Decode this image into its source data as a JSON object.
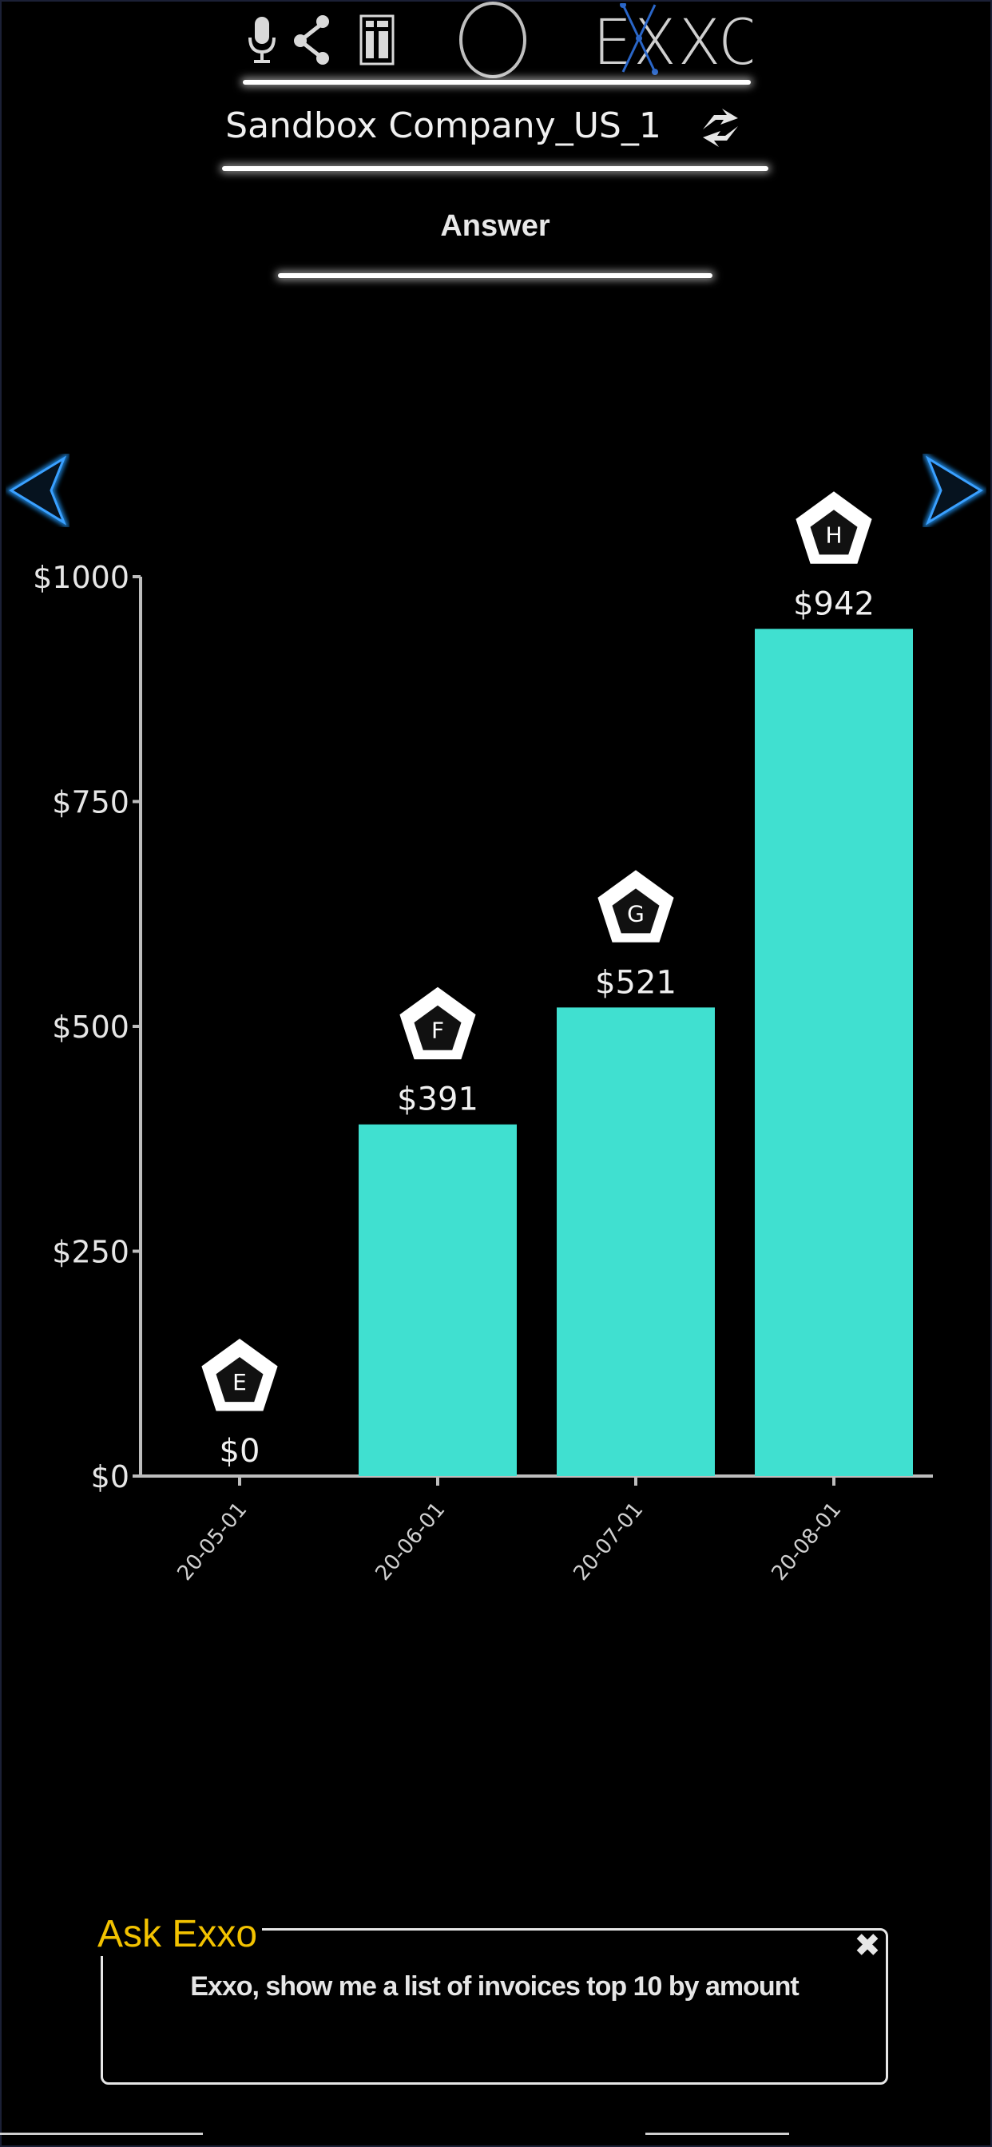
{
  "header": {
    "logo_text": "EXXO",
    "company_name": "Sandbox Company_US_1",
    "section_label": "Answer"
  },
  "icons": {
    "mic": "mic-icon",
    "share": "share-icon",
    "document": "document-icon",
    "home": "circle-icon",
    "refresh": "refresh-icon",
    "prev": "chevron-left-icon",
    "next": "chevron-right-icon",
    "close": "close-icon"
  },
  "colors": {
    "bar": "#40e0d0",
    "accent_arrow": "#1e7fd0",
    "ask_title": "#f2c200",
    "background": "#000000"
  },
  "chart_data": {
    "type": "bar",
    "categories": [
      "2020-05-01",
      "2020-06-01",
      "2020-07-01",
      "2020-08-01"
    ],
    "tick_labels_visible": [
      "20-05-01",
      "20-06-01",
      "20-07-01",
      "20-08-01"
    ],
    "values": [
      0,
      391,
      521,
      942
    ],
    "data_labels": [
      "$0",
      "$391",
      "$521",
      "$942"
    ],
    "markers": [
      "E",
      "F",
      "G",
      "H"
    ],
    "y_ticks": [
      0,
      250,
      500,
      750,
      1000
    ],
    "y_tick_labels": [
      "$0",
      "$250",
      "$500",
      "$750",
      "$1000"
    ],
    "ylim": [
      0,
      1000
    ],
    "title": "",
    "xlabel": "",
    "ylabel": "",
    "grid": false,
    "legend": "none"
  },
  "ask": {
    "title": "Ask Exxo",
    "query": "Exxo, show me a list of invoices top 10 by amount",
    "close_label": "✖"
  }
}
